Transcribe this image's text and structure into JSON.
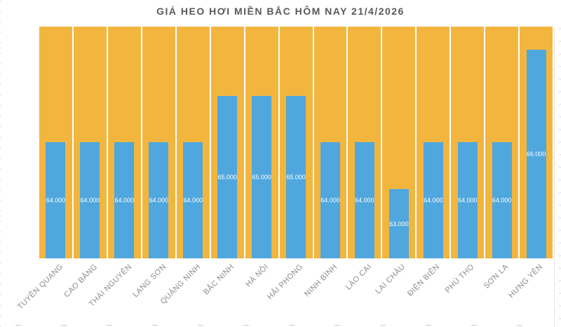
{
  "chart_data": {
    "type": "bar",
    "title": "GIÁ HEO HƠI MIỀN BẮC HÔM NAY 21/4/2026",
    "categories": [
      "TUYÊN QUANG",
      "CAO BẰNG",
      "THÁI NGUYÊN",
      "LẠNG SƠN",
      "QUẢNG NINH",
      "BẮC NINH",
      "HÀ NỘI",
      "HẢI PHÒNG",
      "NINH BÌNH",
      "LÀO CAI",
      "LAI CHÂU",
      "ĐIỆN BIÊN",
      "PHÚ THỌ",
      "SƠN LA",
      "HƯNG YÊN"
    ],
    "values": [
      64000,
      64000,
      64000,
      64000,
      64000,
      65000,
      65000,
      65000,
      64000,
      64000,
      63000,
      64000,
      64000,
      64000,
      66000
    ],
    "value_labels": [
      "64.000",
      "64.000",
      "64.000",
      "64.000",
      "64.000",
      "65.000",
      "65.000",
      "65.000",
      "64.000",
      "64.000",
      "63.000",
      "64.000",
      "64.000",
      "64.000",
      "66.000"
    ],
    "xlabel": "",
    "ylabel": "",
    "ylim": [
      61500,
      66500
    ],
    "legend": "none",
    "grid": "white vertical category separators",
    "data_label_position": "center",
    "colors": {
      "plot_background": "#F2B63F",
      "bar_fill": "#4FA7DE",
      "data_label": "#FFFFFF",
      "axis_label": "#8C8C8C",
      "title": "#595959",
      "page_background": "#FFFFFF"
    }
  }
}
